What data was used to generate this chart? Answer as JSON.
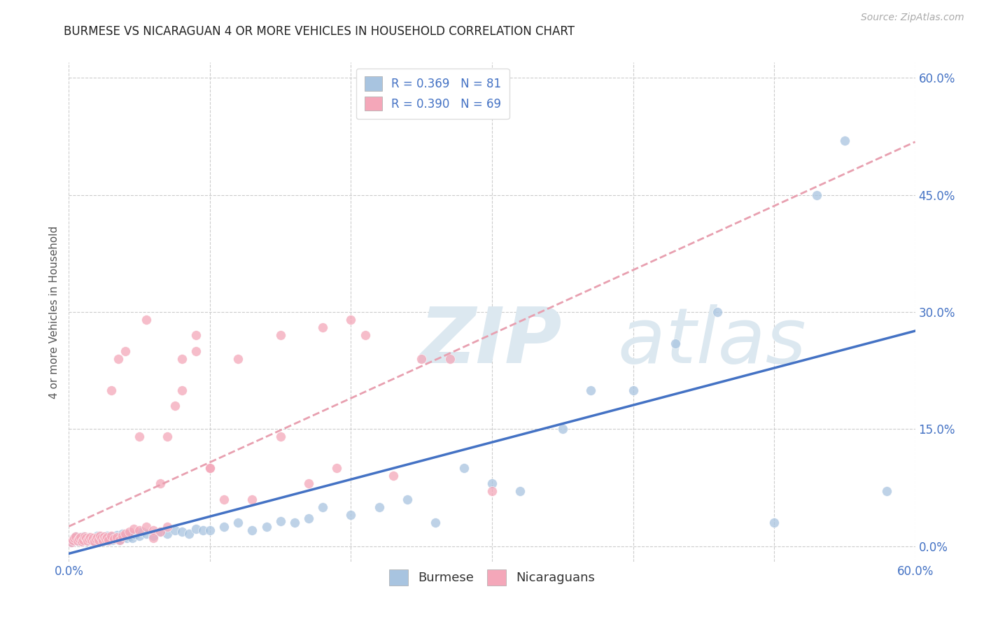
{
  "title": "BURMESE VS NICARAGUAN 4 OR MORE VEHICLES IN HOUSEHOLD CORRELATION CHART",
  "source": "Source: ZipAtlas.com",
  "ylabel": "4 or more Vehicles in Household",
  "x_ticks_minor": [
    0.0,
    0.1,
    0.2,
    0.3,
    0.4,
    0.5,
    0.6
  ],
  "y_ticks": [
    0.0,
    0.15,
    0.3,
    0.45,
    0.6
  ],
  "xlim": [
    0.0,
    0.6
  ],
  "ylim": [
    -0.02,
    0.62
  ],
  "burmese_R": "0.369",
  "burmese_N": "81",
  "nicaraguan_R": "0.390",
  "nicaraguan_N": "69",
  "burmese_color": "#a8c4e0",
  "nicaraguan_color": "#f4a7b9",
  "burmese_line_color": "#4472c4",
  "nicaraguan_line_color": "#e8a0b0",
  "label_color": "#4472c4",
  "grid_color": "#cccccc",
  "title_color": "#222222",
  "source_color": "#aaaaaa",
  "watermark_color": "#dce8f0",
  "background_color": "#ffffff",
  "burmese_x": [
    0.002,
    0.003,
    0.004,
    0.005,
    0.006,
    0.007,
    0.008,
    0.009,
    0.01,
    0.01,
    0.011,
    0.012,
    0.013,
    0.014,
    0.015,
    0.016,
    0.017,
    0.018,
    0.019,
    0.02,
    0.02,
    0.021,
    0.022,
    0.023,
    0.024,
    0.025,
    0.026,
    0.027,
    0.028,
    0.029,
    0.03,
    0.031,
    0.032,
    0.033,
    0.034,
    0.035,
    0.036,
    0.037,
    0.038,
    0.04,
    0.041,
    0.042,
    0.043,
    0.045,
    0.047,
    0.05,
    0.052,
    0.055,
    0.06,
    0.065,
    0.07,
    0.075,
    0.08,
    0.085,
    0.09,
    0.095,
    0.1,
    0.11,
    0.12,
    0.13,
    0.14,
    0.15,
    0.16,
    0.17,
    0.18,
    0.2,
    0.22,
    0.24,
    0.26,
    0.28,
    0.3,
    0.32,
    0.35,
    0.37,
    0.4,
    0.43,
    0.46,
    0.5,
    0.53,
    0.55,
    0.58
  ],
  "burmese_y": [
    0.005,
    0.008,
    0.01,
    0.012,
    0.007,
    0.009,
    0.011,
    0.006,
    0.008,
    0.012,
    0.01,
    0.007,
    0.009,
    0.011,
    0.008,
    0.01,
    0.006,
    0.009,
    0.011,
    0.008,
    0.013,
    0.01,
    0.007,
    0.012,
    0.009,
    0.011,
    0.008,
    0.013,
    0.007,
    0.01,
    0.012,
    0.008,
    0.009,
    0.011,
    0.014,
    0.01,
    0.008,
    0.013,
    0.016,
    0.012,
    0.01,
    0.016,
    0.012,
    0.01,
    0.015,
    0.013,
    0.018,
    0.016,
    0.013,
    0.018,
    0.016,
    0.02,
    0.018,
    0.016,
    0.022,
    0.02,
    0.02,
    0.025,
    0.03,
    0.02,
    0.025,
    0.032,
    0.03,
    0.035,
    0.05,
    0.04,
    0.05,
    0.06,
    0.03,
    0.1,
    0.08,
    0.07,
    0.15,
    0.2,
    0.2,
    0.26,
    0.3,
    0.03,
    0.45,
    0.52,
    0.07
  ],
  "nicaraguan_x": [
    0.002,
    0.003,
    0.004,
    0.005,
    0.006,
    0.007,
    0.008,
    0.009,
    0.01,
    0.011,
    0.012,
    0.013,
    0.014,
    0.015,
    0.016,
    0.017,
    0.018,
    0.019,
    0.02,
    0.021,
    0.022,
    0.023,
    0.024,
    0.025,
    0.026,
    0.027,
    0.028,
    0.03,
    0.032,
    0.034,
    0.036,
    0.038,
    0.04,
    0.043,
    0.046,
    0.05,
    0.055,
    0.06,
    0.065,
    0.07,
    0.08,
    0.09,
    0.1,
    0.11,
    0.13,
    0.15,
    0.17,
    0.19,
    0.21,
    0.23,
    0.25,
    0.27,
    0.3,
    0.03,
    0.035,
    0.04,
    0.05,
    0.055,
    0.06,
    0.065,
    0.07,
    0.075,
    0.08,
    0.09,
    0.1,
    0.12,
    0.15,
    0.18,
    0.2
  ],
  "nicaraguan_y": [
    0.005,
    0.008,
    0.01,
    0.012,
    0.007,
    0.009,
    0.011,
    0.006,
    0.008,
    0.012,
    0.01,
    0.007,
    0.009,
    0.011,
    0.008,
    0.01,
    0.006,
    0.009,
    0.011,
    0.008,
    0.013,
    0.01,
    0.007,
    0.012,
    0.009,
    0.011,
    0.008,
    0.013,
    0.009,
    0.011,
    0.008,
    0.013,
    0.016,
    0.018,
    0.022,
    0.02,
    0.025,
    0.02,
    0.018,
    0.025,
    0.2,
    0.25,
    0.1,
    0.06,
    0.06,
    0.14,
    0.08,
    0.1,
    0.27,
    0.09,
    0.24,
    0.24,
    0.07,
    0.2,
    0.24,
    0.25,
    0.14,
    0.29,
    0.01,
    0.08,
    0.14,
    0.18,
    0.24,
    0.27,
    0.1,
    0.24,
    0.27,
    0.28,
    0.29
  ]
}
